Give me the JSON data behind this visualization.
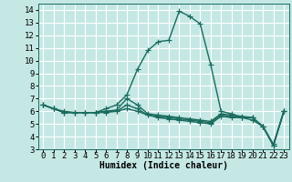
{
  "xlabel": "Humidex (Indice chaleur)",
  "ylabel": "",
  "bg_color": "#c5e8e5",
  "grid_color": "#ffffff",
  "line_color": "#1a6b5e",
  "x_values": [
    0,
    1,
    2,
    3,
    4,
    5,
    6,
    7,
    8,
    9,
    10,
    11,
    12,
    13,
    14,
    15,
    16,
    17,
    18,
    19,
    20,
    21,
    22,
    23
  ],
  "series": [
    [
      6.5,
      6.2,
      6.0,
      5.9,
      5.9,
      5.9,
      6.2,
      6.5,
      7.3,
      9.3,
      10.8,
      11.5,
      11.6,
      13.9,
      13.5,
      12.9,
      9.7,
      6.0,
      5.8,
      5.5,
      5.3,
      4.8,
      3.4,
      6.0
    ],
    [
      6.5,
      6.2,
      5.9,
      5.9,
      5.9,
      5.9,
      6.0,
      6.1,
      7.0,
      6.5,
      5.8,
      5.7,
      5.6,
      5.5,
      5.4,
      5.3,
      5.2,
      5.8,
      5.7,
      5.6,
      5.5,
      4.8,
      3.3,
      6.0
    ],
    [
      6.5,
      6.2,
      5.9,
      5.9,
      5.9,
      5.9,
      6.0,
      6.0,
      6.5,
      6.2,
      5.7,
      5.6,
      5.5,
      5.4,
      5.3,
      5.2,
      5.1,
      5.7,
      5.6,
      5.5,
      5.5,
      4.8,
      3.3,
      6.0
    ],
    [
      6.5,
      6.2,
      5.9,
      5.9,
      5.9,
      5.9,
      5.9,
      6.0,
      6.2,
      6.0,
      5.7,
      5.5,
      5.4,
      5.3,
      5.2,
      5.1,
      5.0,
      5.6,
      5.5,
      5.5,
      5.5,
      4.8,
      3.3,
      6.0
    ]
  ],
  "ylim": [
    3,
    14.5
  ],
  "xlim": [
    -0.5,
    23.5
  ],
  "yticks": [
    3,
    4,
    5,
    6,
    7,
    8,
    9,
    10,
    11,
    12,
    13,
    14
  ],
  "xticks": [
    0,
    1,
    2,
    3,
    4,
    5,
    6,
    7,
    8,
    9,
    10,
    11,
    12,
    13,
    14,
    15,
    16,
    17,
    18,
    19,
    20,
    21,
    22,
    23
  ],
  "marker": "+",
  "markersize": 4,
  "linewidth": 1.0,
  "xlabel_fontsize": 7,
  "tick_fontsize": 6.5
}
